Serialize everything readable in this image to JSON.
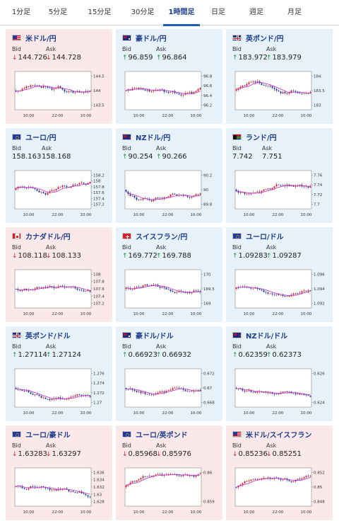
{
  "tabs": [
    {
      "label": "1分足",
      "active": false
    },
    {
      "label": "5分足",
      "active": false
    },
    {
      "label": "15分足",
      "active": false
    },
    {
      "label": "30分足",
      "active": false
    },
    {
      "label": "1時間足",
      "active": true
    },
    {
      "label": "日足",
      "active": false
    },
    {
      "label": "週足",
      "active": false
    },
    {
      "label": "月足",
      "active": false
    }
  ],
  "labels": {
    "bid": "Bid",
    "ask": "Ask"
  },
  "colors": {
    "up": "#d21f2a",
    "down": "#1f3d9a",
    "ma": "#c040c8",
    "link": "#1d3c8c",
    "pink_bg": "#fbe9ea",
    "blue_bg": "#e6f1f9"
  },
  "time_labels": [
    "10:00",
    "22:00",
    "10:00"
  ],
  "cards": [
    {
      "pair": "米ドル/円",
      "flag": "flag-us-icon",
      "bg": "pink",
      "bid_dir": "down",
      "bid": "144.726",
      "ask_dir": "down",
      "ask": "144.728",
      "yticks": [
        "144.5",
        "144",
        "143.5"
      ],
      "trend": 0.2,
      "vol": 0.7
    },
    {
      "pair": "豪ドル/円",
      "flag": "flag-au-icon",
      "bg": "blue",
      "bid_dir": "up",
      "bid": "96.859",
      "ask_dir": "up",
      "ask": "96.864",
      "yticks": [
        "96.8",
        "96.6",
        "96.4",
        "96.2"
      ],
      "trend": -0.1,
      "vol": 0.8
    },
    {
      "pair": "英ポンド/円",
      "flag": "flag-gb-icon",
      "bg": "blue",
      "bid_dir": "up",
      "bid": "183.972",
      "ask_dir": "up",
      "ask": "183.979",
      "yticks": [
        "184",
        "183.5",
        "183"
      ],
      "trend": 0.0,
      "vol": 0.8
    },
    {
      "pair": "ユーロ/円",
      "flag": "flag-eu-icon",
      "bg": "blue",
      "bid_dir": "",
      "bid": "158.163",
      "ask_dir": "",
      "ask": "158.168",
      "yticks": [
        "158.2",
        "158",
        "157.8",
        "157.6",
        "157.4",
        "157.2"
      ],
      "trend": 0.1,
      "vol": 0.8
    },
    {
      "pair": "NZドル/円",
      "flag": "flag-nz-icon",
      "bg": "blue",
      "bid_dir": "up",
      "bid": "90.254",
      "ask_dir": "up",
      "ask": "90.266",
      "yticks": [
        "90.2",
        "90",
        "89.8"
      ],
      "trend": 0.0,
      "vol": 0.8
    },
    {
      "pair": "ランド/円",
      "flag": "flag-za-icon",
      "bg": "blue",
      "bid_dir": "",
      "bid": "7.742",
      "ask_dir": "",
      "ask": "7.751",
      "yticks": [
        "7.76",
        "7.74",
        "7.72",
        "7.7"
      ],
      "trend": 0.1,
      "vol": 0.7
    },
    {
      "pair": "カナダドル/円",
      "flag": "flag-ca-icon",
      "bg": "pink",
      "bid_dir": "down",
      "bid": "108.118",
      "ask_dir": "down",
      "ask": "108.133",
      "yticks": [
        "108",
        "107.8",
        "107.6",
        "107.4",
        "107.2"
      ],
      "trend": 0.1,
      "vol": 0.8
    },
    {
      "pair": "スイスフラン/円",
      "flag": "flag-ch-icon",
      "bg": "blue",
      "bid_dir": "up",
      "bid": "169.772",
      "ask_dir": "up",
      "ask": "169.788",
      "yticks": [
        "170",
        "169.5",
        "169"
      ],
      "trend": 0.0,
      "vol": 0.7
    },
    {
      "pair": "ユーロ/ドル",
      "flag": "flag-eu-us-icon",
      "bg": "blue",
      "bid_dir": "up",
      "bid": "1.09283",
      "ask_dir": "up",
      "ask": "1.09287",
      "yticks": [
        "1.096",
        "1.094",
        "1.092"
      ],
      "trend": -0.3,
      "vol": 0.5
    },
    {
      "pair": "英ポンド/ドル",
      "flag": "flag-gb-us-icon",
      "bg": "blue",
      "bid_dir": "up",
      "bid": "1.27114",
      "ask_dir": "up",
      "ask": "1.27124",
      "yticks": [
        "1.276",
        "1.274",
        "1.272",
        "1.27"
      ],
      "trend": -0.4,
      "vol": 0.6
    },
    {
      "pair": "豪ドル/ドル",
      "flag": "flag-au-us-icon",
      "bg": "blue",
      "bid_dir": "up",
      "bid": "0.66923",
      "ask_dir": "up",
      "ask": "0.66932",
      "yticks": [
        "0.672",
        "0.67",
        "0.668"
      ],
      "trend": -0.4,
      "vol": 0.6
    },
    {
      "pair": "NZドル/ドル",
      "flag": "flag-nz-us-icon",
      "bg": "blue",
      "bid_dir": "up",
      "bid": "0.62359",
      "ask_dir": "up",
      "ask": "0.62373",
      "yticks": [
        "0.626",
        "0.624"
      ],
      "trend": -0.3,
      "vol": 0.6
    },
    {
      "pair": "ユーロ/豪ドル",
      "flag": "flag-eu-au-icon",
      "bg": "pink",
      "bid_dir": "down",
      "bid": "1.63283",
      "ask_dir": "down",
      "ask": "1.63297",
      "yticks": [
        "1.636",
        "1.634",
        "1.632",
        "1.63",
        "1.628"
      ],
      "trend": 0.2,
      "vol": 0.8
    },
    {
      "pair": "ユーロ/英ポンド",
      "flag": "flag-eu-gb-icon",
      "bg": "pink",
      "bid_dir": "down",
      "bid": "0.85968",
      "ask_dir": "down",
      "ask": "0.85976",
      "yticks": [
        "0.86",
        "0.859"
      ],
      "trend": 0.2,
      "vol": 0.6
    },
    {
      "pair": "米ドル/スイスフラン",
      "flag": "flag-us-ch-icon",
      "bg": "pink",
      "bid_dir": "down",
      "bid": "0.85236",
      "ask_dir": "down",
      "ask": "0.85251",
      "yticks": [
        "0.852",
        "0.85",
        "0.848"
      ],
      "trend": 0.5,
      "vol": 0.6
    }
  ]
}
